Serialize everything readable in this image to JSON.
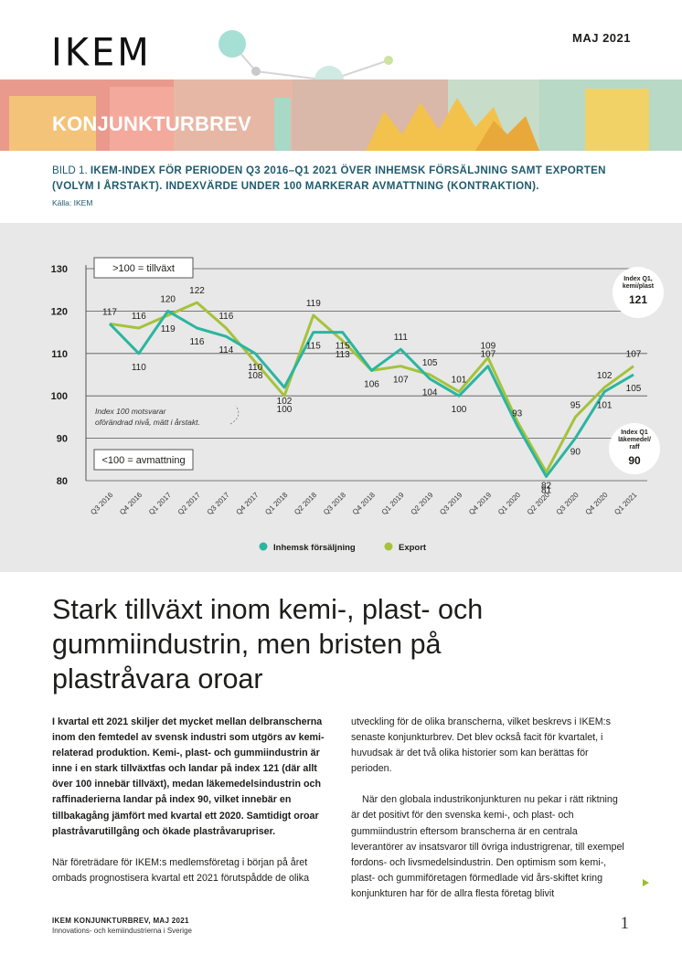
{
  "header": {
    "logo": "IKEM",
    "date": "MAJ 2021",
    "banner_title": "KONJUNKTURBREV"
  },
  "figure": {
    "caption_prefix": "BILD 1. ",
    "caption_text": "IKEM-INDEX FÖR PERIODEN Q3 2016–Q1 2021 ÖVER INHEMSK FÖRSÄLJNING SAMT EXPORTEN (VOLYM I ÅRSTAKT). INDEXVÄRDE UNDER 100 MARKERAR AVMATTNING (KONTRAKTION).",
    "source": "Källa: IKEM"
  },
  "chart_data": {
    "type": "line",
    "categories": [
      "Q3 2016",
      "Q4 2016",
      "Q1 2017",
      "Q2 2017",
      "Q3 2017",
      "Q4 2017",
      "Q1 2018",
      "Q2 2018",
      "Q3 2018",
      "Q4 2018",
      "Q1 2019",
      "Q2 2019",
      "Q3 2019",
      "Q4 2019",
      "Q1 2020",
      "Q2 2020",
      "Q3 2020",
      "Q4 2020",
      "Q1 2021"
    ],
    "series": [
      {
        "name": "Inhemsk försäljning",
        "color": "#2bb5a0",
        "values": [
          117,
          110,
          120,
          116,
          114,
          110,
          102,
          115,
          115,
          106,
          111,
          104,
          100,
          107,
          93,
          81,
          90,
          101,
          105
        ]
      },
      {
        "name": "Export",
        "color": "#a5c23a",
        "values": [
          117,
          116,
          119,
          122,
          116,
          108,
          100,
          119,
          113,
          106,
          107,
          105,
          101,
          109,
          94,
          82,
          95,
          102,
          107
        ]
      }
    ],
    "data_labels": {
      "Inhemsk försäljning": [
        "117",
        "110",
        "120",
        "116",
        "114",
        "110",
        "102",
        "115",
        "115",
        "106",
        "111",
        "104",
        "100",
        "107",
        "93",
        "81",
        "90",
        "101",
        "105"
      ],
      "Export": [
        "",
        "116",
        "119",
        "122",
        "116",
        "108",
        "100",
        "119",
        "113",
        "",
        "107",
        "105",
        "101",
        "109",
        "",
        "82",
        "95",
        "102",
        "107"
      ]
    },
    "y_ticks": [
      "80",
      "90",
      "100",
      "110",
      "120",
      "130"
    ],
    "ylim": [
      80,
      130
    ],
    "grid": true,
    "legend_position": "bottom",
    "annotations": {
      "growth_box": ">100 = tillväxt",
      "slowdown_box": "<100 = avmattning",
      "note_line1": "Index 100 motsvarar",
      "note_line2": "oförändrad nivå, mätt i årstakt."
    },
    "badges": [
      {
        "lines": [
          "Index Q1,",
          "kemi/plast"
        ],
        "value": "121"
      },
      {
        "lines": [
          "Index Q1",
          "läkemedel/",
          "raff"
        ],
        "value": "90"
      }
    ]
  },
  "article": {
    "headline": "Stark tillväxt inom kemi-, plast- och gummiindustrin, men bristen på plastråvara oroar",
    "lead": "I kvartal ett 2021 skiljer det mycket mellan delbranscherna inom den femtedel av svensk industri som utgörs av kemi-relaterad produktion.  Kemi-, plast- och gummiindustrin är inne i en stark tillväxtfas och landar på index 121 (där allt över 100 innebär tillväxt), medan läkemedelsindustrin och raffinaderierna landar på index 90, vilket innebär en tillbakagång jämfört med kvartal ett 2020. Samtidigt oroar plastråvarutillgång och ökade plastråvarupriser.",
    "para1": "När företrädare för IKEM:s medlemsföretag i början på året ombads prognostisera kvartal ett 2021 förutspådde de olika",
    "para2": "utveckling för de olika branscherna, vilket beskrevs i IKEM:s senaste konjunkturbrev. Det blev också facit för kvartalet, i huvudsak är det två olika historier som kan berättas för perioden.",
    "para3": "När den globala industrikonjunkturen nu pekar i rätt riktning är det positivt för den svenska kemi-, och plast- och gummiindustrin eftersom branscherna är en centrala leverantörer av insatsvaror till övriga industrigrenar, till exempel fordons- och livsmedelsindustrin. Den optimism som kemi-, plast- och gummiföretagen förmedlade vid års-skiftet kring konjunkturen har för de allra flesta företag blivit"
  },
  "footer": {
    "title": "IKEM KONJUNKTURBREV, MAJ 2021",
    "subtitle": "Innovations- och kemiindustrierna i Sverige",
    "page_number": "1"
  }
}
